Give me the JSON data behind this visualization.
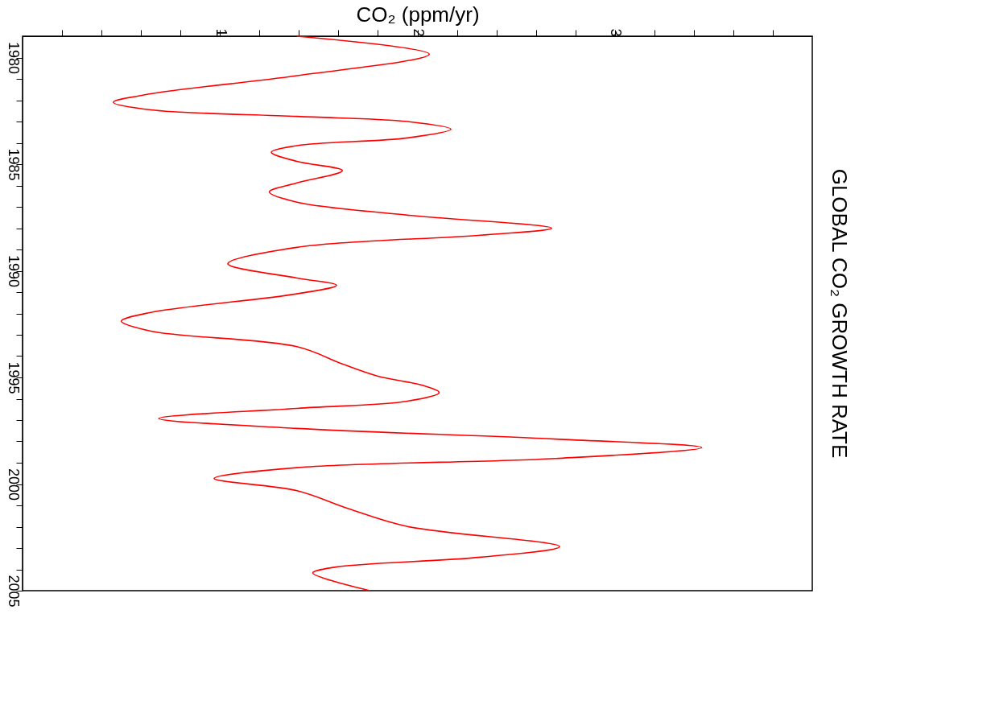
{
  "chart_data": {
    "type": "line",
    "orientation": "horizontal",
    "title": "GLOBAL CO₂ GROWTH RATE",
    "xlabel": "CO₂ (ppm/yr)",
    "x": [
      1979.0,
      1979.84,
      1980.85,
      1981.7,
      1982.1,
      1982.45,
      1982.76,
      1983.0,
      1983.36,
      1983.77,
      1984.13,
      1984.44,
      1984.87,
      1985.3,
      1985.88,
      1986.3,
      1986.78,
      1987.39,
      1988.0,
      1988.33,
      1988.9,
      1989.67,
      1990.34,
      1990.68,
      1991.08,
      1991.95,
      1992.36,
      1992.83,
      1993.56,
      1994.37,
      1994.94,
      1995.38,
      1995.71,
      1996.11,
      1996.45,
      1996.92,
      1997.39,
      1997.89,
      1998.29,
      1998.8,
      1999.23,
      1999.74,
      2000.31,
      2001.15,
      2001.99,
      2002.93,
      2003.43,
      2003.9,
      2004.17,
      2005.0
    ],
    "series": [
      {
        "color": "#ff0000",
        "values": [
          1.39,
          2.06,
          1.39,
          0.65,
          0.46,
          0.65,
          1.39,
          1.95,
          2.17,
          1.95,
          1.39,
          1.26,
          1.39,
          1.62,
          1.39,
          1.25,
          1.39,
          1.95,
          2.68,
          2.32,
          1.39,
          1.04,
          1.39,
          1.59,
          1.39,
          0.65,
          0.5,
          0.65,
          1.39,
          1.62,
          1.8,
          2.03,
          2.11,
          1.95,
          1.39,
          0.69,
          1.39,
          2.7,
          3.44,
          2.7,
          1.39,
          0.97,
          1.39,
          1.65,
          1.95,
          2.72,
          2.32,
          1.58,
          1.47,
          1.76
        ]
      }
    ],
    "xlim": [
      0,
      4
    ],
    "xticks": [
      {
        "value": 0.2,
        "label": null
      },
      {
        "value": 0.4,
        "label": null
      },
      {
        "value": 0.6,
        "label": null
      },
      {
        "value": 0.8,
        "label": null
      },
      1,
      {
        "value": 1.2,
        "label": null
      },
      {
        "value": 1.4,
        "label": null
      },
      {
        "value": 1.6,
        "label": null
      },
      {
        "value": 1.8,
        "label": null
      },
      2,
      {
        "value": 2.2,
        "label": null
      },
      {
        "value": 2.4,
        "label": null
      },
      {
        "value": 2.6,
        "label": null
      },
      {
        "value": 2.8,
        "label": null
      },
      3,
      {
        "value": 3.2,
        "label": null
      },
      {
        "value": 3.4,
        "label": null
      },
      {
        "value": 3.6,
        "label": null
      },
      {
        "value": 3.8,
        "label": null
      }
    ],
    "ylim": [
      2005,
      1979
    ],
    "yticks": [
      1980,
      {
        "value": 1981,
        "label": null
      },
      {
        "value": 1982,
        "label": null
      },
      {
        "value": 1983,
        "label": null
      },
      {
        "value": 1984,
        "label": null
      },
      1985,
      {
        "value": 1986,
        "label": null
      },
      {
        "value": 1987,
        "label": null
      },
      {
        "value": 1988,
        "label": null
      },
      {
        "value": 1989,
        "label": null
      },
      1990,
      {
        "value": 1991,
        "label": null
      },
      {
        "value": 1992,
        "label": null
      },
      {
        "value": 1993,
        "label": null
      },
      {
        "value": 1994,
        "label": null
      },
      1995,
      {
        "value": 1996,
        "label": null
      },
      {
        "value": 1997,
        "label": null
      },
      {
        "value": 1998,
        "label": null
      },
      {
        "value": 1999,
        "label": null
      },
      2000,
      {
        "value": 2001,
        "label": null
      },
      {
        "value": 2002,
        "label": null
      },
      {
        "value": 2003,
        "label": null
      },
      {
        "value": 2004,
        "label": null
      },
      2005
    ],
    "grid": false,
    "marker": "none",
    "line_style": "solid"
  }
}
